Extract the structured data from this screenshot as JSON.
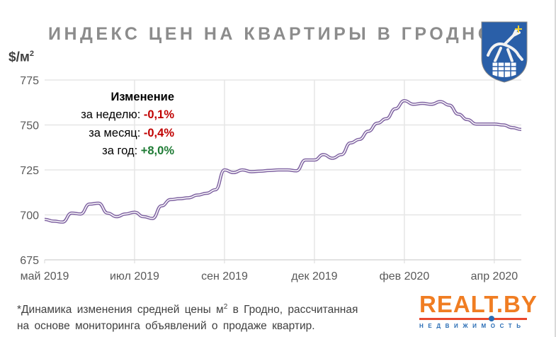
{
  "title": "ИНДЕКС ЦЕН НА КВАРТИРЫ В ГРОДНО",
  "unit": "$/м",
  "unit_sup": "2",
  "annotation": {
    "heading": "Изменение",
    "week_label": "за неделю:",
    "week_value": "-0,1%",
    "month_label": "за месяц:",
    "month_value": "-0,4%",
    "year_label": "за год:",
    "year_value": "+8,0%"
  },
  "footnote": {
    "line1_a": "*Динамика изменения средней цены м",
    "line1_sup": "2",
    "line1_b": " в Гродно, рассчитанная",
    "line2": "на основе мониторинга объявлений о продаже квартир."
  },
  "logo": {
    "name": "REALT.BY",
    "tagline": "НЕДВИЖИМОСТЬ"
  },
  "colors": {
    "line": "#8064a2",
    "neg": "#c00000",
    "pos": "#1e7b34",
    "logo_orange": "#f07d22",
    "logo_blue": "#2a6db5"
  },
  "chart_data": {
    "type": "line",
    "title": "ИНДЕКС ЦЕН НА КВАРТИРЫ В ГРОДНО",
    "ylabel": "$/м2",
    "ylim": [
      675,
      775
    ],
    "yticks": [
      675,
      700,
      725,
      750,
      775
    ],
    "grid": true,
    "x_tick_labels": [
      {
        "index": 0,
        "label": "май 2019"
      },
      {
        "index": 10,
        "label": "июл 2019"
      },
      {
        "index": 20,
        "label": "сен 2019"
      },
      {
        "index": 30,
        "label": "дек 2019"
      },
      {
        "index": 40,
        "label": "фев 2020"
      },
      {
        "index": 50,
        "label": "апр 2020"
      }
    ],
    "series": [
      {
        "name": "Индекс цен",
        "values": [
          697.5,
          696.5,
          696,
          701,
          700.5,
          706,
          706.5,
          701,
          699,
          700.5,
          701.5,
          699,
          698,
          705,
          708.5,
          709,
          709.5,
          711,
          712,
          714,
          725,
          723.5,
          725,
          724,
          724.3,
          724.7,
          725,
          725,
          724.5,
          730.5,
          730.5,
          733.5,
          731.5,
          733.5,
          740,
          742,
          746.5,
          751,
          753.5,
          759,
          763.5,
          761.5,
          762,
          761.5,
          763,
          761,
          756,
          753,
          750.5,
          750.5,
          750.5,
          750,
          748.5,
          747.5
        ]
      }
    ]
  }
}
